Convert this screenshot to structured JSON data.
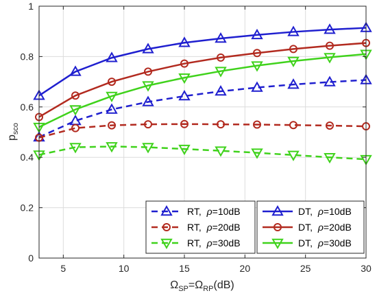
{
  "chart_data": {
    "type": "line",
    "xlabel": {
      "omega1": "Ω",
      "sub1": "SP",
      "eq": "=",
      "omega2": "Ω",
      "sub2": "RP",
      "unit": "(dB)"
    },
    "ylabel": {
      "main": "p",
      "sub": "sco"
    },
    "xlim": [
      3,
      30
    ],
    "ylim": [
      0,
      1
    ],
    "xticks": [
      5,
      10,
      15,
      20,
      25,
      30
    ],
    "yticks": [
      0,
      0.2,
      0.4,
      0.6,
      0.8,
      1
    ],
    "xtick_labels": [
      "5",
      "10",
      "15",
      "20",
      "25",
      "30"
    ],
    "ytick_labels": [
      "0",
      "0.2",
      "0.4",
      "0.6",
      "0.8",
      "1"
    ],
    "grid": true,
    "legend_placement": "bottom-right",
    "x": [
      3,
      6,
      9,
      12,
      15,
      18,
      21,
      24,
      27,
      30
    ],
    "series": [
      {
        "key": "rt10",
        "legend_prefix": "RT, ",
        "rho": "ρ",
        "legend_suffix": "=10dB",
        "color": "#1f1fcf",
        "dash": true,
        "marker": "triangle-up",
        "values": [
          0.48,
          0.545,
          0.59,
          0.62,
          0.643,
          0.662,
          0.677,
          0.689,
          0.699,
          0.707
        ]
      },
      {
        "key": "rt20",
        "legend_prefix": "RT, ",
        "rho": "ρ",
        "legend_suffix": "=20dB",
        "color": "#b22a1f",
        "dash": true,
        "marker": "circle",
        "values": [
          0.478,
          0.516,
          0.527,
          0.531,
          0.532,
          0.531,
          0.53,
          0.528,
          0.526,
          0.523
        ]
      },
      {
        "key": "rt30",
        "legend_prefix": "RT, ",
        "rho": "ρ",
        "legend_suffix": "=30dB",
        "color": "#3fd21b",
        "dash": true,
        "marker": "triangle-down",
        "values": [
          0.41,
          0.44,
          0.443,
          0.44,
          0.433,
          0.426,
          0.418,
          0.409,
          0.4,
          0.392
        ]
      },
      {
        "key": "dt10",
        "legend_prefix": "DT, ",
        "rho": "ρ",
        "legend_suffix": "=10dB",
        "color": "#1f1fcf",
        "dash": false,
        "marker": "triangle-up",
        "values": [
          0.645,
          0.74,
          0.795,
          0.83,
          0.855,
          0.872,
          0.886,
          0.898,
          0.907,
          0.914
        ]
      },
      {
        "key": "dt20",
        "legend_prefix": "DT, ",
        "rho": "ρ",
        "legend_suffix": "=20dB",
        "color": "#b22a1f",
        "dash": false,
        "marker": "circle",
        "values": [
          0.56,
          0.645,
          0.7,
          0.74,
          0.772,
          0.796,
          0.814,
          0.83,
          0.843,
          0.854
        ]
      },
      {
        "key": "dt30",
        "legend_prefix": "DT, ",
        "rho": "ρ",
        "legend_suffix": "=30dB",
        "color": "#3fd21b",
        "dash": false,
        "marker": "triangle-down",
        "values": [
          0.52,
          0.59,
          0.643,
          0.685,
          0.716,
          0.742,
          0.764,
          0.782,
          0.797,
          0.81
        ]
      }
    ]
  }
}
